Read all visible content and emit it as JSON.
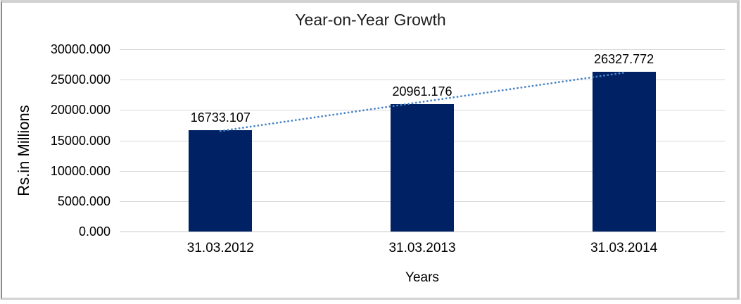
{
  "chart_data": {
    "type": "bar",
    "title": "Year-on-Year Growth",
    "xlabel": "Years",
    "ylabel": "Rs.in Millions",
    "categories": [
      "31.03.2012",
      "31.03.2013",
      "31.03.2014"
    ],
    "values": [
      16733.107,
      20961.176,
      26327.772
    ],
    "value_labels": [
      "16733.107",
      "20961.176",
      "26327.772"
    ],
    "ylim": [
      0,
      30000
    ],
    "ytick_labels": [
      "0.000",
      "5000.000",
      "10000.000",
      "15000.000",
      "20000.000",
      "25000.000",
      "30000.000"
    ],
    "grid": true,
    "legend": "none",
    "trendline": "linear-dotted",
    "colors": {
      "bar": "#002264",
      "trendline": "#4a86c8",
      "gridline": "#d7d7d7",
      "text": "#000000",
      "title_text": "#1f1f1f",
      "frame_border": "#d2d2d2",
      "background": "#ffffff"
    }
  }
}
